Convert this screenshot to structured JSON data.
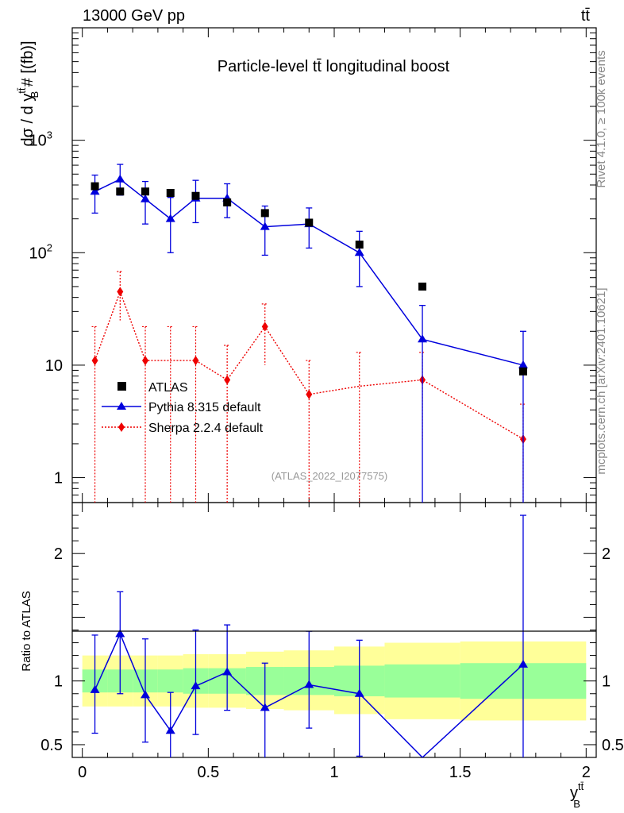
{
  "header": {
    "energy_label": "13000 GeV pp",
    "process_label": "tt̄"
  },
  "side_labels": {
    "rivet": "Rivet 4.1.0, ≥ 100k events",
    "mcplots": "mcplots.cern.ch [arXiv:2401.10621]"
  },
  "chart_data": {
    "type": "scatter",
    "title": "Particle-level tt̄ longitudinal boost",
    "analysis_id": "(ATLAS_2022_I2077575)",
    "main": {
      "ylabel": "dσ / d y_B^{tt̄} # [(fb)]",
      "yscale": "log",
      "ylim": [
        0.6,
        10000
      ],
      "yticks": [
        {
          "value": 1,
          "label": "1"
        },
        {
          "value": 10,
          "label": "10"
        },
        {
          "value": 100,
          "label": "10",
          "exp": "2"
        },
        {
          "value": 1000,
          "label": "10",
          "exp": "3"
        }
      ]
    },
    "ratio": {
      "ylabel": "Ratio to ATLAS",
      "ylim": [
        0.4,
        2.4
      ],
      "yticks": [
        {
          "value": 0.5,
          "label": "0.5"
        },
        {
          "value": 1,
          "label": "1"
        },
        {
          "value": 2,
          "label": "2"
        }
      ]
    },
    "x": {
      "label": "y_B^{tt̄}",
      "xlim": [
        -0.04,
        2.04
      ],
      "ticks": [
        {
          "value": 0,
          "label": "0"
        },
        {
          "value": 0.5,
          "label": "0.5"
        },
        {
          "value": 1,
          "label": "1"
        },
        {
          "value": 1.5,
          "label": "1.5"
        },
        {
          "value": 2,
          "label": "2"
        }
      ]
    },
    "bins": [
      0,
      0.1,
      0.2,
      0.3,
      0.4,
      0.5,
      0.65,
      0.8,
      1.0,
      1.2,
      1.5,
      2.0
    ],
    "bands": {
      "inner": [
        [
          0.91,
          1.09
        ],
        [
          0.91,
          1.09
        ],
        [
          0.91,
          1.09
        ],
        [
          0.91,
          1.09
        ],
        [
          0.9,
          1.1
        ],
        [
          0.9,
          1.1
        ],
        [
          0.89,
          1.11
        ],
        [
          0.89,
          1.11
        ],
        [
          0.88,
          1.12
        ],
        [
          0.87,
          1.13
        ],
        [
          0.86,
          1.14
        ]
      ],
      "outer": [
        [
          0.8,
          1.2
        ],
        [
          0.8,
          1.2
        ],
        [
          0.8,
          1.2
        ],
        [
          0.8,
          1.2
        ],
        [
          0.79,
          1.21
        ],
        [
          0.79,
          1.21
        ],
        [
          0.78,
          1.23
        ],
        [
          0.77,
          1.24
        ],
        [
          0.74,
          1.27
        ],
        [
          0.7,
          1.3
        ],
        [
          0.69,
          1.31
        ]
      ]
    },
    "legend": {
      "position": "center-left",
      "entries": [
        "ATLAS",
        "Pythia 8.315 default",
        "Sherpa 2.2.4 default"
      ]
    },
    "series": [
      {
        "name": "ATLAS",
        "marker": "square",
        "color": "#000000",
        "x": [
          0.05,
          0.15,
          0.25,
          0.35,
          0.45,
          0.575,
          0.725,
          0.9,
          1.1,
          1.35,
          1.75
        ],
        "y": [
          390,
          350,
          350,
          340,
          320,
          280,
          225,
          185,
          118,
          50,
          8.8
        ]
      },
      {
        "name": "Pythia 8.315 default",
        "marker": "triangle",
        "color": "#0000dd",
        "line": "solid",
        "x": [
          0.05,
          0.15,
          0.25,
          0.35,
          0.45,
          0.575,
          0.725,
          0.9,
          1.1,
          1.35,
          1.75
        ],
        "y": [
          350,
          450,
          300,
          200,
          305,
          305,
          170,
          180,
          100,
          17,
          10
        ],
        "yerr_low": [
          225,
          325,
          180,
          100,
          185,
          205,
          95,
          110,
          50,
          0.3,
          0.3
        ],
        "yerr_high": [
          490,
          610,
          430,
          310,
          440,
          410,
          260,
          250,
          155,
          34,
          20
        ],
        "ratio": [
          0.93,
          1.37,
          0.89,
          0.61,
          0.96,
          1.07,
          0.79,
          0.97,
          0.9,
          0.3,
          1.13
        ],
        "ratio_low": [
          0.59,
          0.9,
          0.52,
          0.3,
          0.58,
          0.77,
          0.37,
          0.63,
          0.41,
          0.3,
          0.3
        ],
        "ratio_high": [
          1.36,
          1.7,
          1.33,
          0.91,
          1.4,
          1.44,
          1.14,
          1.39,
          1.32,
          0.3,
          2.3
        ]
      },
      {
        "name": "Sherpa 2.2.4 default",
        "marker": "diamond",
        "color": "#ee0000",
        "line": "dotted",
        "x": [
          0.05,
          0.15,
          0.25,
          0.35,
          0.45,
          0.575,
          0.725,
          0.9,
          1.1,
          1.35,
          1.75
        ],
        "y": [
          11,
          45,
          11,
          11,
          11,
          7.4,
          22,
          5.5,
          6.5,
          7.4,
          2.2
        ],
        "yerr_low": [
          0.3,
          25,
          0.3,
          0.3,
          0.3,
          0.3,
          10,
          0.3,
          0.3,
          2.1,
          0.3
        ],
        "yerr_high": [
          22,
          68,
          22,
          22,
          22,
          15,
          35,
          11,
          13,
          13,
          4.5
        ],
        "draw_marker": [
          true,
          true,
          true,
          false,
          true,
          true,
          true,
          true,
          false,
          true,
          true
        ]
      }
    ]
  }
}
